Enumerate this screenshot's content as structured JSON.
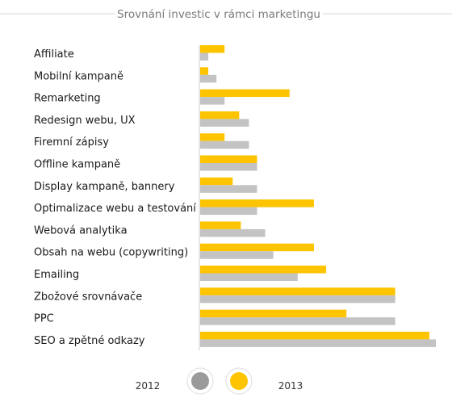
{
  "chart_data": {
    "type": "bar",
    "orientation": "horizontal",
    "title": "Srovnání investic v rámci marketingu",
    "categories": [
      "Affiliate",
      "Mobilní kampaně",
      "Remarketing",
      "Redesign webu, UX",
      "Firemní zápisy",
      "Offline kampaně",
      "Display kampaně, bannery",
      "Optimalizace webu a testování",
      "Webová analytika",
      "Obsah na webu (copywriting)",
      "Emailing",
      "Zbožové srovnávače",
      "PPC",
      "SEO a zpětné odkazy"
    ],
    "series": [
      {
        "name": "2013",
        "color": "#fec400",
        "values": [
          30,
          10,
          110,
          48,
          30,
          70,
          40,
          140,
          50,
          140,
          155,
          240,
          180,
          282
        ]
      },
      {
        "name": "2012",
        "color": "#c3c3c3",
        "values": [
          10,
          20,
          30,
          60,
          60,
          70,
          70,
          70,
          80,
          90,
          120,
          240,
          240,
          290
        ]
      }
    ],
    "xlim": [
      0,
      290
    ],
    "legend": {
      "placement": "bottom-center",
      "items": [
        "2012",
        "2013"
      ]
    },
    "grid": false
  }
}
